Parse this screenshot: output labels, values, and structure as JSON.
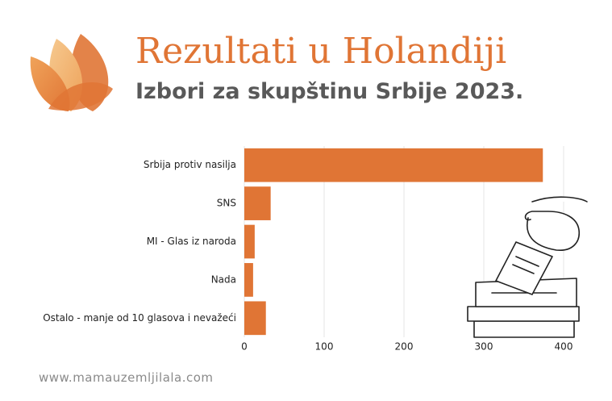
{
  "chart_data": {
    "type": "bar",
    "orientation": "horizontal",
    "title": "Rezultati u Holandiji",
    "subtitle": "Izbori za skupštinu Srbije 2023.",
    "footer": "www.mamauzemljilala.com",
    "categories": [
      "Srbija protiv nasilja",
      "SNS",
      "MI - Glas iz naroda",
      "Nada",
      "Ostalo - manje od 10 glasova i nevažeći"
    ],
    "values": [
      374,
      33,
      13,
      11,
      27
    ],
    "color": "#e07535",
    "xlim": [
      0,
      400
    ],
    "xticks": [
      0,
      100,
      200,
      300,
      400
    ],
    "grid": true
  }
}
